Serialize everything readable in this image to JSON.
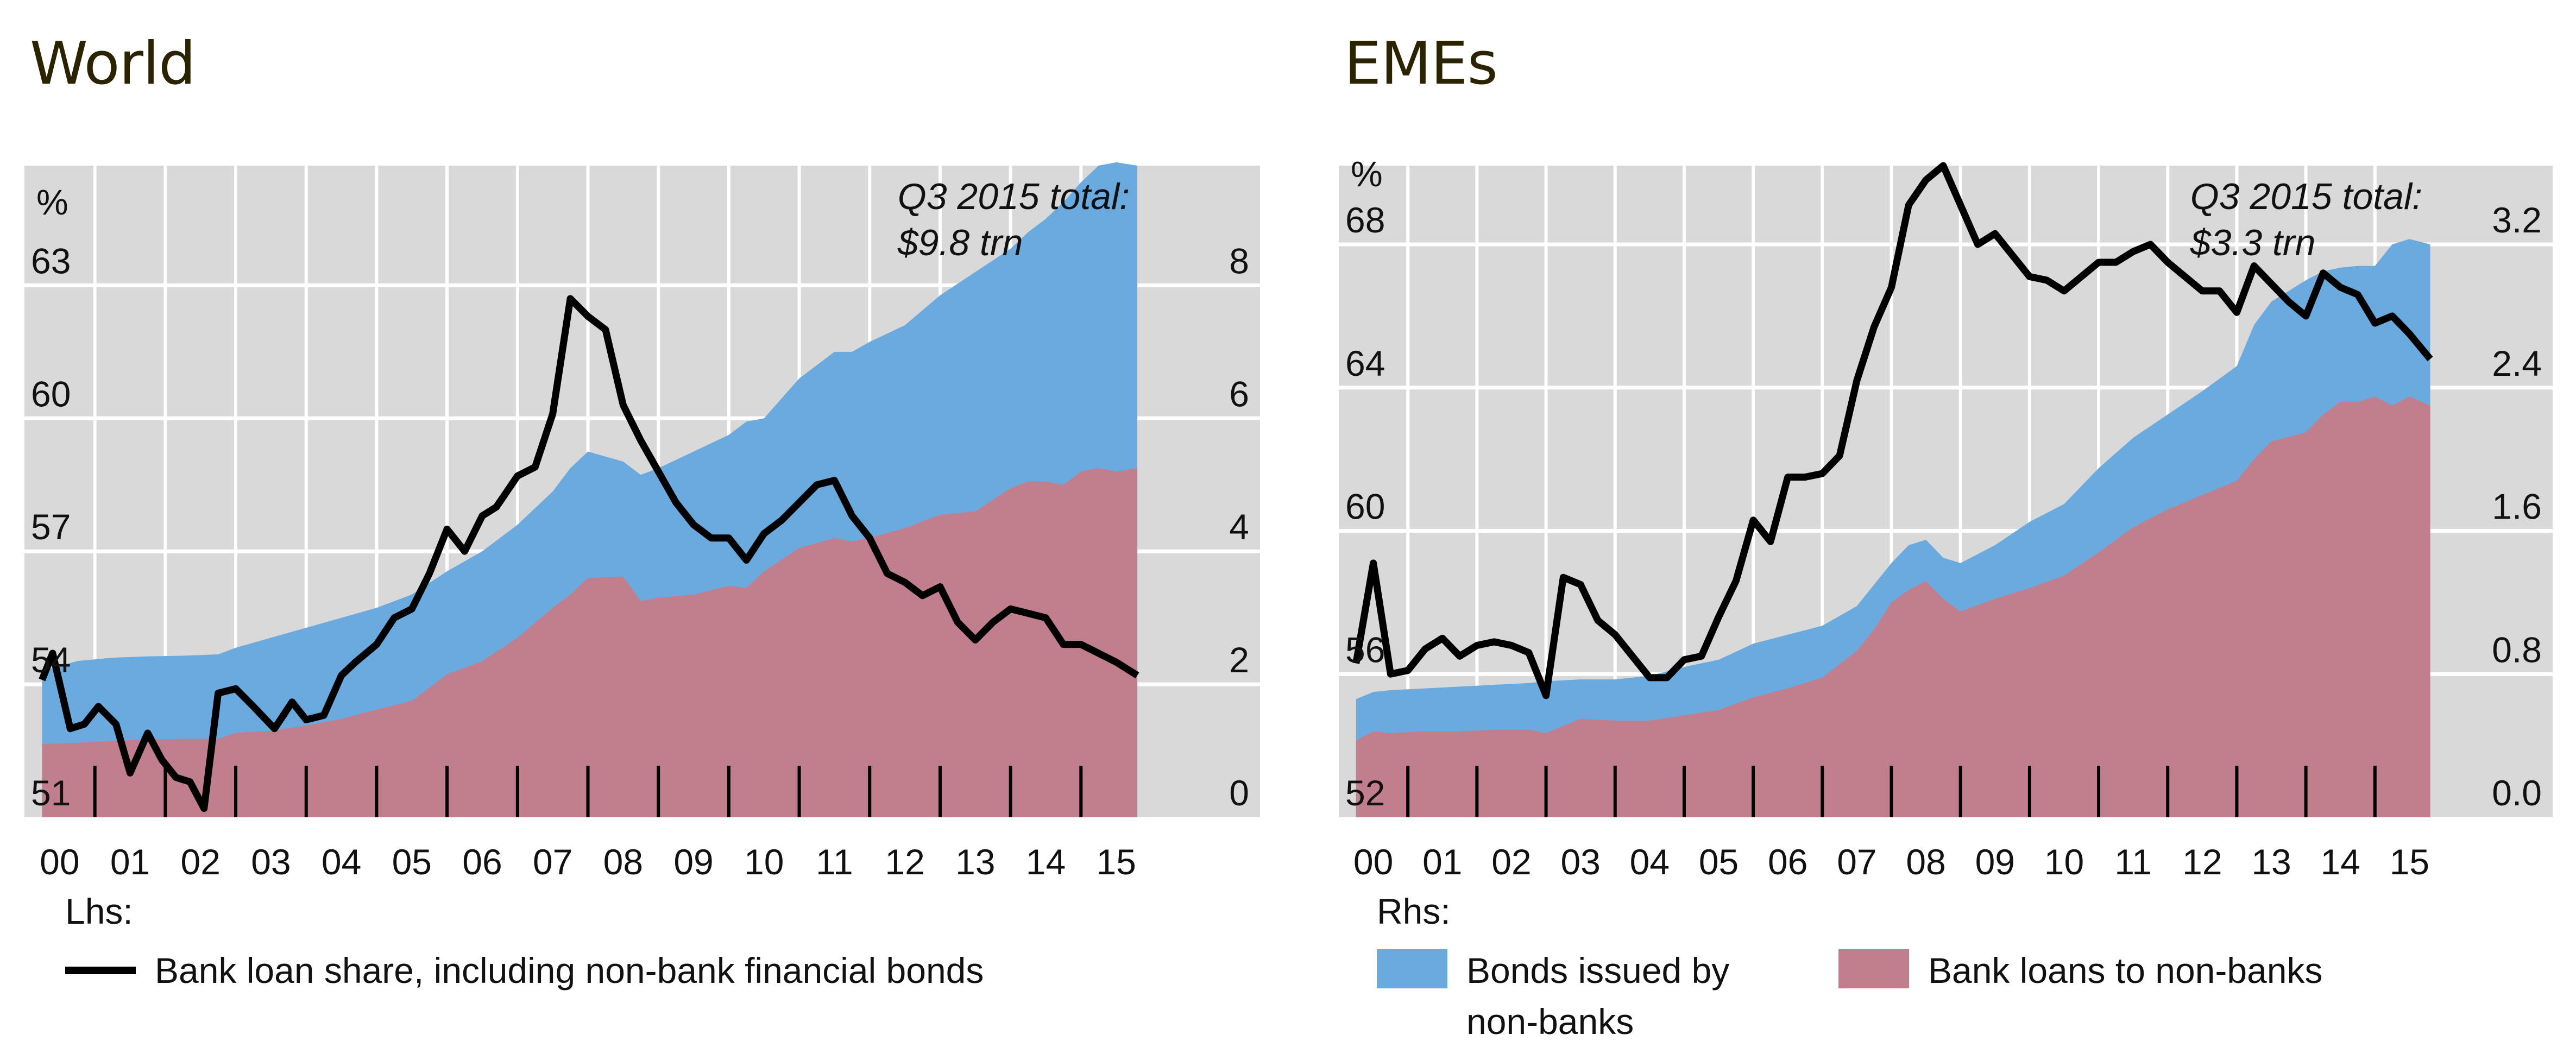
{
  "chart_data": [
    {
      "type": "area",
      "title": "World",
      "annotation": [
        "Q3 2015 total:",
        "$9.8 trn"
      ],
      "ylabel_left": "%",
      "ylabel_right": "",
      "left_axis": {
        "ticks": [
          "51",
          "54",
          "57",
          "60",
          "63"
        ],
        "values": [
          51,
          54,
          57,
          60,
          63
        ],
        "range": [
          51,
          65.7
        ]
      },
      "right_axis": {
        "ticks": [
          "0",
          "2",
          "4",
          "6",
          "8"
        ],
        "values": [
          0,
          2,
          4,
          6,
          8
        ],
        "range": [
          0,
          9.8
        ]
      },
      "x_tick_labels": [
        "00",
        "01",
        "02",
        "03",
        "04",
        "05",
        "06",
        "07",
        "08",
        "09",
        "10",
        "11",
        "12",
        "13",
        "14",
        "15"
      ],
      "x_range": [
        2000,
        2016
      ],
      "grid": true,
      "series": [
        {
          "name": "Bank loans to non-banks",
          "axis": "right",
          "kind": "area",
          "color": "#c17f8e",
          "x": [
            2000.25,
            2000.75,
            2001.25,
            2001.75,
            2002.25,
            2002.75,
            2003.0,
            2003.5,
            2004.0,
            2004.5,
            2005.0,
            2005.5,
            2006.0,
            2006.5,
            2007.0,
            2007.5,
            2007.75,
            2008.0,
            2008.5,
            2008.75,
            2009.0,
            2009.5,
            2010.0,
            2010.25,
            2010.5,
            2011.0,
            2011.5,
            2011.75,
            2012.0,
            2012.5,
            2013.0,
            2013.5,
            2014.0,
            2014.25,
            2014.5,
            2014.75,
            2015.0,
            2015.25,
            2015.5,
            2015.8
          ],
          "values": [
            1.1,
            1.12,
            1.15,
            1.17,
            1.18,
            1.18,
            1.27,
            1.3,
            1.38,
            1.48,
            1.62,
            1.75,
            2.15,
            2.35,
            2.7,
            3.15,
            3.35,
            3.6,
            3.62,
            3.25,
            3.3,
            3.35,
            3.48,
            3.45,
            3.7,
            4.05,
            4.2,
            4.15,
            4.2,
            4.35,
            4.55,
            4.6,
            4.95,
            5.05,
            5.05,
            5.0,
            5.2,
            5.25,
            5.2,
            5.25
          ]
        },
        {
          "name": "Bonds issued by non-banks",
          "axis": "right",
          "kind": "area",
          "stacked_total": true,
          "color": "#6aaade",
          "x": [
            2000.25,
            2000.75,
            2001.25,
            2001.75,
            2002.25,
            2002.75,
            2003.0,
            2003.5,
            2004.0,
            2004.5,
            2005.0,
            2005.5,
            2006.0,
            2006.5,
            2007.0,
            2007.5,
            2007.75,
            2008.0,
            2008.5,
            2008.75,
            2009.0,
            2009.5,
            2010.0,
            2010.25,
            2010.5,
            2011.0,
            2011.5,
            2011.75,
            2012.0,
            2012.5,
            2013.0,
            2013.5,
            2014.0,
            2014.25,
            2014.5,
            2014.75,
            2015.0,
            2015.25,
            2015.5,
            2015.8
          ],
          "values": [
            2.2,
            2.35,
            2.4,
            2.42,
            2.43,
            2.45,
            2.55,
            2.7,
            2.85,
            3.0,
            3.15,
            3.35,
            3.7,
            4.0,
            4.4,
            4.9,
            5.25,
            5.5,
            5.35,
            5.15,
            5.25,
            5.5,
            5.75,
            5.95,
            6.0,
            6.6,
            7.0,
            7.0,
            7.15,
            7.4,
            7.85,
            8.2,
            8.55,
            8.8,
            9.0,
            9.25,
            9.55,
            9.8,
            9.85,
            9.8
          ]
        },
        {
          "name": "Bank loan share, including non-bank financial bonds",
          "axis": "left",
          "kind": "line",
          "color": "#000000",
          "x": [
            2000.25,
            2000.4,
            2000.65,
            2000.85,
            2001.05,
            2001.3,
            2001.5,
            2001.75,
            2001.95,
            2002.15,
            2002.35,
            2002.55,
            2002.75,
            2003.0,
            2003.25,
            2003.55,
            2003.8,
            2004.0,
            2004.25,
            2004.5,
            2004.7,
            2005.0,
            2005.25,
            2005.5,
            2005.75,
            2006.0,
            2006.25,
            2006.5,
            2006.7,
            2007.0,
            2007.25,
            2007.5,
            2007.75,
            2008.0,
            2008.25,
            2008.5,
            2008.75,
            2009.0,
            2009.25,
            2009.5,
            2009.75,
            2010.0,
            2010.25,
            2010.5,
            2010.75,
            2011.0,
            2011.25,
            2011.5,
            2011.75,
            2012.0,
            2012.25,
            2012.5,
            2012.75,
            2013.0,
            2013.25,
            2013.5,
            2013.75,
            2014.0,
            2014.25,
            2014.5,
            2014.75,
            2015.0,
            2015.25,
            2015.5,
            2015.8
          ],
          "values": [
            54.1,
            54.7,
            53.0,
            53.1,
            53.5,
            53.1,
            52.0,
            52.9,
            52.3,
            51.9,
            51.8,
            51.2,
            53.8,
            53.9,
            53.5,
            53.0,
            53.6,
            53.2,
            53.3,
            54.2,
            54.5,
            54.9,
            55.5,
            55.7,
            56.5,
            57.5,
            57.0,
            57.8,
            58.0,
            58.7,
            58.9,
            60.1,
            62.7,
            62.3,
            62.0,
            60.3,
            59.5,
            58.8,
            58.1,
            57.6,
            57.3,
            57.3,
            56.8,
            57.4,
            57.7,
            58.1,
            58.5,
            58.6,
            57.8,
            57.3,
            56.5,
            56.3,
            56.0,
            56.2,
            55.4,
            55.0,
            55.4,
            55.7,
            55.6,
            55.5,
            54.9,
            54.9,
            54.7,
            54.5,
            54.2
          ]
        }
      ],
      "legend": {
        "head": "Lhs:",
        "items": [
          "Bank loan share, including non-bank financial bonds"
        ]
      }
    },
    {
      "type": "area",
      "title": "EMEs",
      "annotation": [
        "Q3 2015 total:",
        "$3.3 trn"
      ],
      "ylabel_left": "%",
      "left_axis": {
        "ticks": [
          "52",
          "56",
          "60",
          "64",
          "68"
        ],
        "values": [
          52,
          56,
          60,
          64,
          68
        ],
        "range": [
          52,
          70.2
        ]
      },
      "right_axis": {
        "ticks": [
          "0.0",
          "0.8",
          "1.6",
          "2.4",
          "3.2"
        ],
        "values": [
          0,
          0.8,
          1.6,
          2.4,
          3.2
        ],
        "range": [
          0,
          3.64
        ]
      },
      "x_tick_labels": [
        "00",
        "01",
        "02",
        "03",
        "04",
        "05",
        "06",
        "07",
        "08",
        "09",
        "10",
        "11",
        "12",
        "13",
        "14",
        "15"
      ],
      "x_range": [
        2000,
        2016
      ],
      "grid": true,
      "series": [
        {
          "name": "Bank loans to non-banks",
          "axis": "right",
          "kind": "area",
          "color": "#c17f8e",
          "x": [
            2000.25,
            2000.5,
            2000.75,
            2001.25,
            2001.75,
            2002.25,
            2002.75,
            2003.0,
            2003.5,
            2004.0,
            2004.5,
            2005.0,
            2005.5,
            2006.0,
            2006.5,
            2007.0,
            2007.5,
            2007.75,
            2008.0,
            2008.25,
            2008.5,
            2008.75,
            2009.0,
            2009.5,
            2010.0,
            2010.5,
            2011.0,
            2011.5,
            2012.0,
            2012.5,
            2013.0,
            2013.25,
            2013.5,
            2014.0,
            2014.25,
            2014.5,
            2014.75,
            2015.0,
            2015.25,
            2015.5,
            2015.8
          ],
          "values": [
            0.43,
            0.48,
            0.47,
            0.48,
            0.48,
            0.49,
            0.49,
            0.47,
            0.55,
            0.54,
            0.54,
            0.57,
            0.6,
            0.67,
            0.72,
            0.78,
            0.93,
            1.05,
            1.2,
            1.27,
            1.32,
            1.22,
            1.15,
            1.22,
            1.28,
            1.35,
            1.48,
            1.62,
            1.72,
            1.8,
            1.88,
            2.0,
            2.1,
            2.15,
            2.25,
            2.32,
            2.32,
            2.35,
            2.3,
            2.35,
            2.3
          ]
        },
        {
          "name": "Bonds issued by non-banks",
          "axis": "right",
          "kind": "area",
          "stacked_total": true,
          "color": "#6aaade",
          "x": [
            2000.25,
            2000.5,
            2000.75,
            2001.25,
            2001.75,
            2002.25,
            2002.75,
            2003.0,
            2003.5,
            2004.0,
            2004.5,
            2005.0,
            2005.5,
            2006.0,
            2006.5,
            2007.0,
            2007.5,
            2007.75,
            2008.0,
            2008.25,
            2008.5,
            2008.75,
            2009.0,
            2009.5,
            2010.0,
            2010.5,
            2011.0,
            2011.5,
            2012.0,
            2012.5,
            2013.0,
            2013.25,
            2013.5,
            2014.0,
            2014.25,
            2014.5,
            2014.75,
            2015.0,
            2015.25,
            2015.5,
            2015.8
          ],
          "values": [
            0.66,
            0.7,
            0.71,
            0.72,
            0.73,
            0.74,
            0.75,
            0.76,
            0.77,
            0.77,
            0.79,
            0.84,
            0.88,
            0.97,
            1.02,
            1.07,
            1.18,
            1.3,
            1.42,
            1.52,
            1.55,
            1.45,
            1.42,
            1.52,
            1.65,
            1.75,
            1.95,
            2.12,
            2.25,
            2.38,
            2.52,
            2.75,
            2.88,
            3.0,
            3.05,
            3.07,
            3.08,
            3.08,
            3.2,
            3.23,
            3.2
          ]
        },
        {
          "name": "Bank loan share, including non-bank financial bonds",
          "axis": "left",
          "kind": "line",
          "color": "#000000",
          "x": [
            2000.25,
            2000.5,
            2000.75,
            2001.0,
            2001.25,
            2001.5,
            2001.75,
            2002.0,
            2002.25,
            2002.5,
            2002.75,
            2003.0,
            2003.25,
            2003.5,
            2003.75,
            2004.0,
            2004.25,
            2004.5,
            2004.75,
            2005.0,
            2005.25,
            2005.5,
            2005.75,
            2006.0,
            2006.25,
            2006.5,
            2006.75,
            2007.0,
            2007.25,
            2007.5,
            2007.75,
            2008.0,
            2008.25,
            2008.5,
            2008.75,
            2009.0,
            2009.25,
            2009.5,
            2009.75,
            2010.0,
            2010.25,
            2010.5,
            2010.75,
            2011.0,
            2011.25,
            2011.5,
            2011.75,
            2012.0,
            2012.25,
            2012.5,
            2012.75,
            2013.0,
            2013.25,
            2013.5,
            2013.75,
            2014.0,
            2014.25,
            2014.5,
            2014.75,
            2015.0,
            2015.25,
            2015.5,
            2015.8
          ],
          "values": [
            56.3,
            59.1,
            56.0,
            56.1,
            56.7,
            57.0,
            56.5,
            56.8,
            56.9,
            56.8,
            56.6,
            55.4,
            58.7,
            58.5,
            57.5,
            57.1,
            56.5,
            55.9,
            55.9,
            56.4,
            56.5,
            57.6,
            58.6,
            60.3,
            59.7,
            61.5,
            61.5,
            61.6,
            62.1,
            64.2,
            65.7,
            66.8,
            69.1,
            69.8,
            70.2,
            69.1,
            68.0,
            68.3,
            67.7,
            67.1,
            67.0,
            66.7,
            67.1,
            67.5,
            67.5,
            67.8,
            68.0,
            67.5,
            67.1,
            66.7,
            66.7,
            66.1,
            67.4,
            66.9,
            66.4,
            66.0,
            67.2,
            66.8,
            66.6,
            65.8,
            66.0,
            65.5,
            64.8
          ]
        }
      ],
      "legend": {
        "head": "Rhs:",
        "items": [
          "Bonds issued by non-banks",
          "Bank loans to non-banks"
        ]
      }
    }
  ],
  "panels": [
    {
      "title": "World",
      "annotation_line1": "Q3 2015 total:",
      "annotation_line2": "$9.8 trn",
      "unit": "%"
    },
    {
      "title": "EMEs",
      "annotation_line1": "Q3 2015 total:",
      "annotation_line2": "$3.3 trn",
      "unit": "%"
    }
  ],
  "legend": {
    "lhs_head": "Lhs:",
    "lhs_item": "Bank loan share, including non-bank financial bonds",
    "rhs_head": "Rhs:",
    "rhs_item_bonds_line1": "Bonds issued by",
    "rhs_item_bonds_line2": "non-banks",
    "rhs_item_loans": "Bank loans to non-banks"
  },
  "colors": {
    "bonds": "#6aaade",
    "loans": "#c17f8e",
    "line": "#000000",
    "plot_bg": "#d9d9d9",
    "grid": "#ffffff",
    "title": "#2b2300"
  }
}
